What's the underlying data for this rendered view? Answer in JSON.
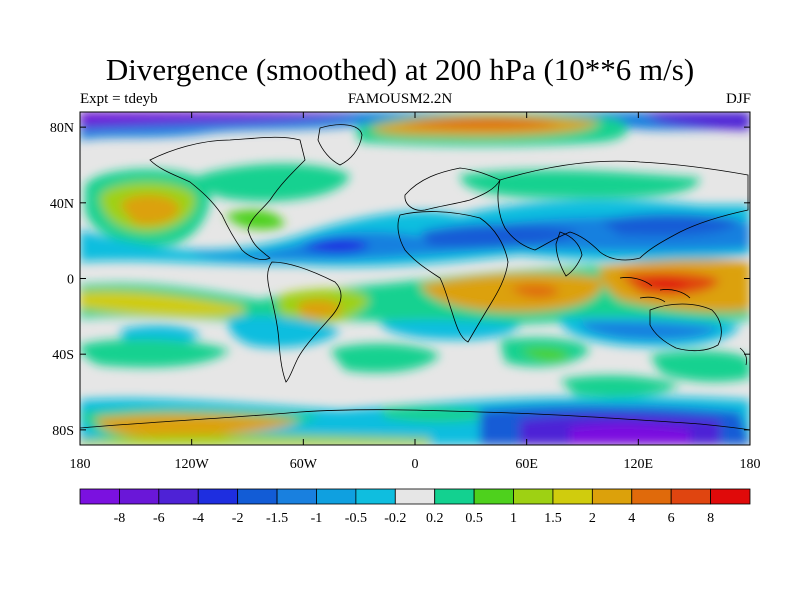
{
  "map": {
    "title": "Divergence (smoothed) at 200 hPa (10**6 m/s)",
    "subtitle_left": "Expt = tdeyb",
    "subtitle_center": "FAMOUSM2.2N",
    "subtitle_right": "DJF",
    "lon_ticks": [
      {
        "value": -180,
        "label": "180"
      },
      {
        "value": -120,
        "label": "120W"
      },
      {
        "value": -60,
        "label": "60W"
      },
      {
        "value": 0,
        "label": "0"
      },
      {
        "value": 60,
        "label": "60E"
      },
      {
        "value": 120,
        "label": "120E"
      },
      {
        "value": 180,
        "label": "180"
      }
    ],
    "lat_ticks": [
      {
        "value": 80,
        "label": "80N"
      },
      {
        "value": 40,
        "label": "40N"
      },
      {
        "value": 0,
        "label": "0"
      },
      {
        "value": -40,
        "label": "40S"
      },
      {
        "value": -80,
        "label": "80S"
      }
    ],
    "lat_range": [
      -88,
      88
    ],
    "lon_range": [
      -180,
      180
    ]
  },
  "colorbar": {
    "colors": [
      "#7b11e0",
      "#6a17d8",
      "#4e22d6",
      "#1e2ee0",
      "#125cd6",
      "#1980df",
      "#0fa0e0",
      "#0fbedf",
      "#e6e6e6",
      "#13d190",
      "#4ed11d",
      "#9ed113",
      "#d0cc0d",
      "#dca10b",
      "#e06a0b",
      "#e04510",
      "#e00a0a"
    ],
    "labels": [
      "-8",
      "-6",
      "-4",
      "-2",
      "-1.5",
      "-1",
      "-0.5",
      "-0.2",
      "0.2",
      "0.5",
      "1",
      "1.5",
      "2",
      "4",
      "6",
      "8"
    ]
  }
}
